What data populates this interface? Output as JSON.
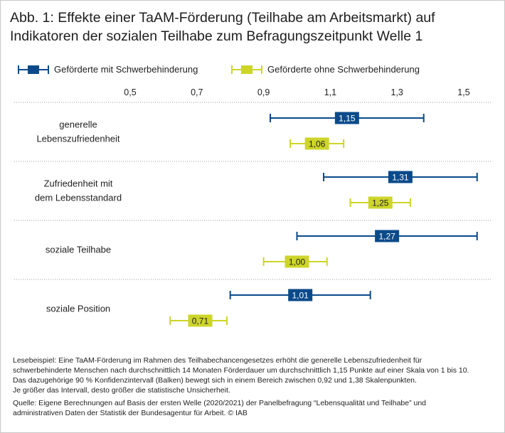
{
  "title": {
    "line1": "Abb. 1: Effekte einer TaAM-Förderung (Teilhabe am Arbeitsmarkt) auf",
    "line2": "Indikatoren der sozialen Teilhabe zum Befragungszeitpunkt Welle 1"
  },
  "colors": {
    "blue": "#0a4a8a",
    "yellow": "#cdd52a",
    "separator": "#9a9a9a"
  },
  "chart_data": {
    "type": "forest",
    "xlim": [
      0.5,
      1.5
    ],
    "xticks": [
      0.5,
      0.7,
      0.9,
      1.1,
      1.3,
      1.5
    ],
    "xtick_labels": [
      "0,5",
      "0,7",
      "0,9",
      "1,1",
      "1,3",
      "1,5"
    ],
    "series": [
      {
        "name": "Geförderte mit Schwerbehinderung",
        "color_key": "blue"
      },
      {
        "name": "Geförderte ohne Schwerbehinderung",
        "color_key": "yellow"
      }
    ],
    "categories": [
      {
        "label": [
          "generelle",
          "Lebenszufriedenheit"
        ],
        "points": [
          {
            "series": 0,
            "value": 1.15,
            "label": "1,15",
            "ci": [
              0.92,
              1.38
            ]
          },
          {
            "series": 1,
            "value": 1.06,
            "label": "1,06",
            "ci": [
              0.98,
              1.14
            ]
          }
        ]
      },
      {
        "label": [
          "Zufriedenheit mit",
          "dem Lebensstandard"
        ],
        "points": [
          {
            "series": 0,
            "value": 1.31,
            "label": "1,31",
            "ci": [
              1.08,
              1.54
            ]
          },
          {
            "series": 1,
            "value": 1.25,
            "label": "1,25",
            "ci": [
              1.16,
              1.34
            ]
          }
        ]
      },
      {
        "label": [
          "soziale Teilhabe"
        ],
        "points": [
          {
            "series": 0,
            "value": 1.27,
            "label": "1,27",
            "ci": [
              1.0,
              1.54
            ]
          },
          {
            "series": 1,
            "value": 1.0,
            "label": "1,00",
            "ci": [
              0.9,
              1.09
            ]
          }
        ]
      },
      {
        "label": [
          "soziale Position"
        ],
        "points": [
          {
            "series": 0,
            "value": 1.01,
            "label": "1,01",
            "ci": [
              0.8,
              1.22
            ]
          },
          {
            "series": 1,
            "value": 0.71,
            "label": "0,71",
            "ci": [
              0.62,
              0.79
            ]
          }
        ]
      }
    ]
  },
  "notes": {
    "lesebeispiel": [
      "Lesebeispiel: Eine TaAM-Förderung im Rahmen des Teilhabechancengesetzes erhöht die generelle Lebenszufriedenheit für",
      "schwerbehinderte Menschen nach durchschnittlich 14 Monaten Förderdauer um durchschnittlich 1,15 Punkte auf einer Skala von 1 bis 10.",
      "Das dazugehörige 90 % Konfidenzintervall (Balken) bewegt sich in einem Bereich zwischen 0,92 und 1,38 Skalenpunkten.",
      "Je größer das Intervall, desto größer die statistische Unsicherheit."
    ],
    "quelle": [
      "Quelle: Eigene Berechnungen auf Basis der ersten Welle (2020/2021) der Panelbefragung “Lebensqualität und Teilhabe” und",
      "administrativen Daten der Statistik der Bundesagentur für Arbeit.  © IAB"
    ]
  }
}
